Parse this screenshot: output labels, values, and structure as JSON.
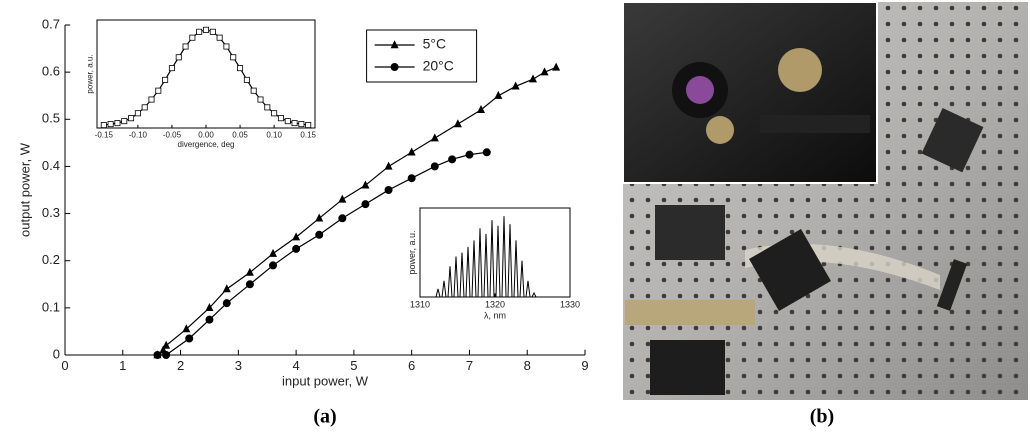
{
  "chart_data": [
    {
      "type": "line",
      "xlabel": "input power, W",
      "ylabel": "output power, W",
      "xlim": [
        0,
        9
      ],
      "ylim": [
        0,
        0.7
      ],
      "xticks": [
        0,
        1,
        2,
        3,
        4,
        5,
        6,
        7,
        8,
        9
      ],
      "yticks": [
        0,
        0.1,
        0.2,
        0.3,
        0.4,
        0.5,
        0.6,
        0.7
      ],
      "legend": "top",
      "frame": false,
      "series": [
        {
          "name": "5°C",
          "color": "#000000",
          "marker": "triangle",
          "x": [
            1.6,
            1.7,
            1.75,
            2.1,
            2.5,
            2.8,
            3.2,
            3.6,
            4.0,
            4.4,
            4.8,
            5.2,
            5.6,
            6.0,
            6.4,
            6.8,
            7.2,
            7.5,
            7.8,
            8.1,
            8.3,
            8.5
          ],
          "values": [
            0,
            0.01,
            0.02,
            0.055,
            0.1,
            0.14,
            0.175,
            0.215,
            0.25,
            0.29,
            0.33,
            0.36,
            0.4,
            0.43,
            0.46,
            0.49,
            0.52,
            0.55,
            0.57,
            0.585,
            0.6,
            0.61
          ]
        },
        {
          "name": "20°C",
          "color": "#000000",
          "marker": "circle",
          "x": [
            1.6,
            1.75,
            2.15,
            2.5,
            2.8,
            3.2,
            3.6,
            4.0,
            4.4,
            4.8,
            5.2,
            5.6,
            6.0,
            6.4,
            6.7,
            7.0,
            7.3
          ],
          "values": [
            0,
            0,
            0.035,
            0.075,
            0.11,
            0.15,
            0.19,
            0.225,
            0.255,
            0.29,
            0.32,
            0.35,
            0.375,
            0.4,
            0.415,
            0.425,
            0.43
          ]
        }
      ]
    },
    {
      "type": "line",
      "xlabel": "divergence, deg",
      "ylabel": "power, a.u.",
      "xlim": [
        -0.16,
        0.16
      ],
      "ylim": [
        0,
        1.1
      ],
      "frame": true,
      "xticks": [
        -0.15,
        {
          "value": -0.1,
          "label": "-0.10"
        },
        -0.05,
        {
          "value": 0,
          "label": "0.00"
        },
        0.05,
        {
          "value": 0.1,
          "label": "0.10"
        },
        0.15
      ],
      "series": [
        {
          "color": "#000000",
          "marker": "square",
          "x": [
            -0.15,
            -0.14,
            -0.13,
            -0.12,
            -0.11,
            -0.1,
            -0.09,
            -0.08,
            -0.07,
            -0.06,
            -0.05,
            -0.04,
            -0.03,
            -0.02,
            -0.01,
            0,
            0.01,
            0.02,
            0.03,
            0.04,
            0.05,
            0.06,
            0.07,
            0.08,
            0.09,
            0.1,
            0.11,
            0.12,
            0.13,
            0.14,
            0.15
          ],
          "values": [
            0.03,
            0.04,
            0.05,
            0.07,
            0.1,
            0.15,
            0.21,
            0.29,
            0.38,
            0.49,
            0.61,
            0.72,
            0.83,
            0.92,
            0.98,
            1.0,
            0.98,
            0.92,
            0.83,
            0.72,
            0.61,
            0.49,
            0.38,
            0.29,
            0.21,
            0.15,
            0.1,
            0.07,
            0.05,
            0.04,
            0.03
          ]
        }
      ]
    },
    {
      "type": "spectrum",
      "xlabel": "λ, nm",
      "ylabel": "power, a.u.",
      "xlim": [
        1310,
        1330
      ],
      "ylim": [
        0,
        1.1
      ],
      "frame": true,
      "xticks": [
        1310,
        1320,
        1330
      ],
      "series": [
        {
          "color": "#000000",
          "x": [
            1312.4,
            1313.2,
            1314.0,
            1314.8,
            1315.6,
            1316.4,
            1317.2,
            1318.0,
            1318.8,
            1319.6,
            1320.4,
            1321.2,
            1322.0,
            1322.8,
            1323.6,
            1324.4,
            1325.2
          ],
          "values": [
            0.1,
            0.2,
            0.38,
            0.5,
            0.55,
            0.62,
            0.7,
            0.85,
            0.78,
            0.95,
            0.88,
            1.0,
            0.9,
            0.7,
            0.45,
            0.2,
            0.05
          ]
        }
      ]
    }
  ],
  "panel_labels": {
    "a": "(a)",
    "b": "(b)"
  }
}
